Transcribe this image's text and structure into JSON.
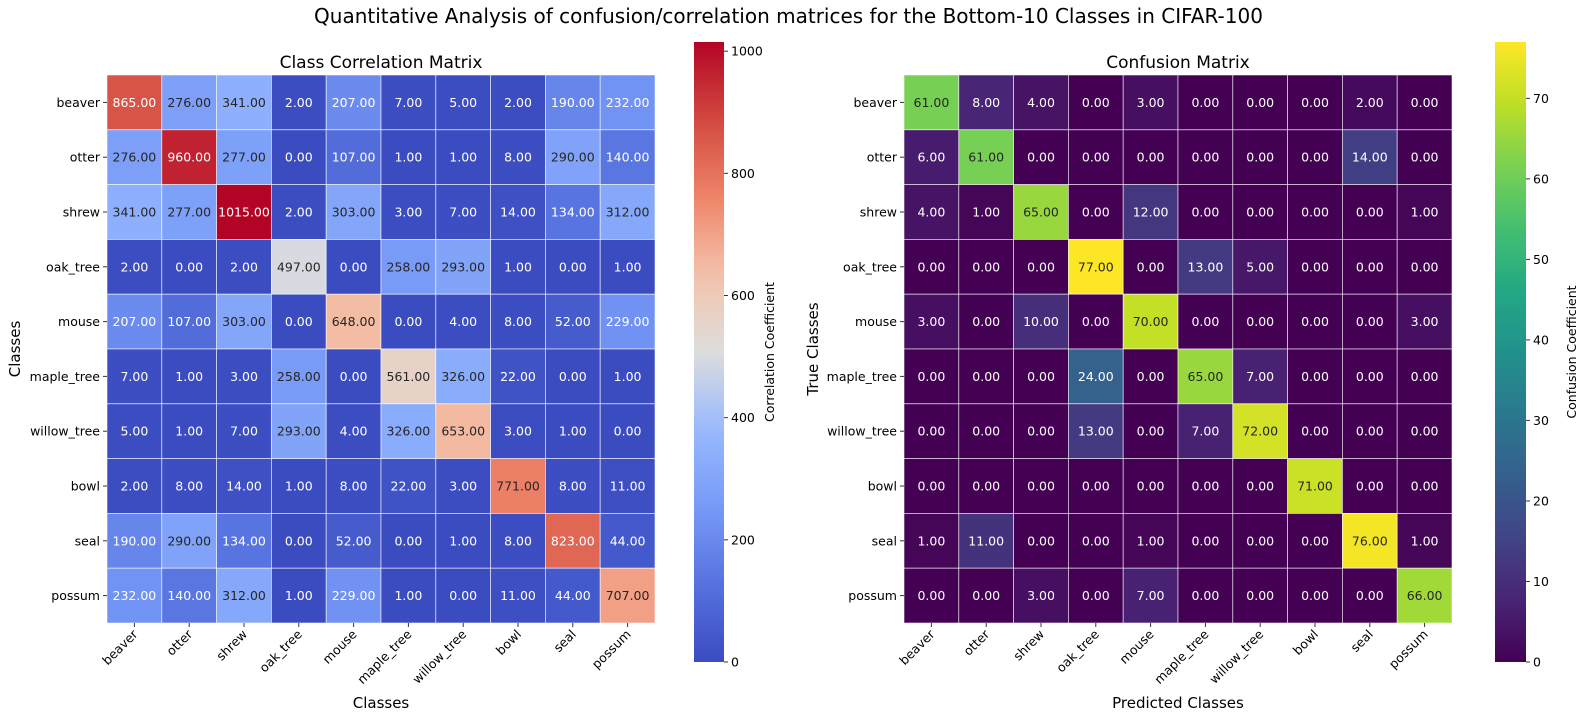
{
  "chart_data": {
    "suptitle": "Quantitative Analysis of confusion/correlation matrices for the Bottom-10 Classes in CIFAR-100",
    "charts": [
      {
        "type": "heatmap",
        "title": "Class Correlation Matrix",
        "xlabel": "Classes",
        "ylabel": "Classes",
        "x_categories": [
          "beaver",
          "otter",
          "shrew",
          "oak_tree",
          "mouse",
          "maple_tree",
          "willow_tree",
          "bowl",
          "seal",
          "possum"
        ],
        "y_categories": [
          "beaver",
          "otter",
          "shrew",
          "oak_tree",
          "mouse",
          "maple_tree",
          "willow_tree",
          "bowl",
          "seal",
          "possum"
        ],
        "colormap": "coolwarm",
        "value_range": [
          0,
          1015
        ],
        "colorbar": {
          "label": "Correlation Coefficient",
          "ticks": [
            0,
            200,
            400,
            600,
            800,
            1000
          ]
        },
        "value_format": "2 decimals",
        "values": [
          [
            865,
            276,
            341,
            2,
            207,
            7,
            5,
            2,
            190,
            232
          ],
          [
            276,
            960,
            277,
            0,
            107,
            1,
            1,
            8,
            290,
            140
          ],
          [
            341,
            277,
            1015,
            2,
            303,
            3,
            7,
            14,
            134,
            312
          ],
          [
            2,
            0,
            2,
            497,
            0,
            258,
            293,
            1,
            0,
            1
          ],
          [
            207,
            107,
            303,
            0,
            648,
            0,
            4,
            8,
            52,
            229
          ],
          [
            7,
            1,
            3,
            258,
            0,
            561,
            326,
            22,
            0,
            1
          ],
          [
            5,
            1,
            7,
            293,
            4,
            326,
            653,
            3,
            1,
            0
          ],
          [
            2,
            8,
            14,
            1,
            8,
            22,
            3,
            771,
            8,
            11
          ],
          [
            190,
            290,
            134,
            0,
            52,
            0,
            1,
            8,
            823,
            44
          ],
          [
            232,
            140,
            312,
            1,
            229,
            1,
            0,
            11,
            44,
            707
          ]
        ]
      },
      {
        "type": "heatmap",
        "title": "Confusion Matrix",
        "xlabel": "Predicted Classes",
        "ylabel": "True Classes",
        "x_categories": [
          "beaver",
          "otter",
          "shrew",
          "oak_tree",
          "mouse",
          "maple_tree",
          "willow_tree",
          "bowl",
          "seal",
          "possum"
        ],
        "y_categories": [
          "beaver",
          "otter",
          "shrew",
          "oak_tree",
          "mouse",
          "maple_tree",
          "willow_tree",
          "bowl",
          "seal",
          "possum"
        ],
        "colormap": "viridis",
        "value_range": [
          0,
          77
        ],
        "colorbar": {
          "label": "Confusion Coefficient",
          "ticks": [
            0,
            10,
            20,
            30,
            40,
            50,
            60,
            70
          ]
        },
        "value_format": "2 decimals",
        "values": [
          [
            61,
            8,
            4,
            0,
            3,
            0,
            0,
            0,
            2,
            0
          ],
          [
            6,
            61,
            0,
            0,
            0,
            0,
            0,
            0,
            14,
            0
          ],
          [
            4,
            1,
            65,
            0,
            12,
            0,
            0,
            0,
            0,
            1
          ],
          [
            0,
            0,
            0,
            77,
            0,
            13,
            5,
            0,
            0,
            0
          ],
          [
            3,
            0,
            10,
            0,
            70,
            0,
            0,
            0,
            0,
            3
          ],
          [
            0,
            0,
            0,
            24,
            0,
            65,
            7,
            0,
            0,
            0
          ],
          [
            0,
            0,
            0,
            13,
            0,
            7,
            72,
            0,
            0,
            0
          ],
          [
            0,
            0,
            0,
            0,
            0,
            0,
            0,
            71,
            0,
            0
          ],
          [
            1,
            11,
            0,
            0,
            1,
            0,
            0,
            0,
            76,
            1
          ],
          [
            0,
            0,
            3,
            0,
            7,
            0,
            0,
            0,
            0,
            66
          ]
        ]
      }
    ]
  }
}
